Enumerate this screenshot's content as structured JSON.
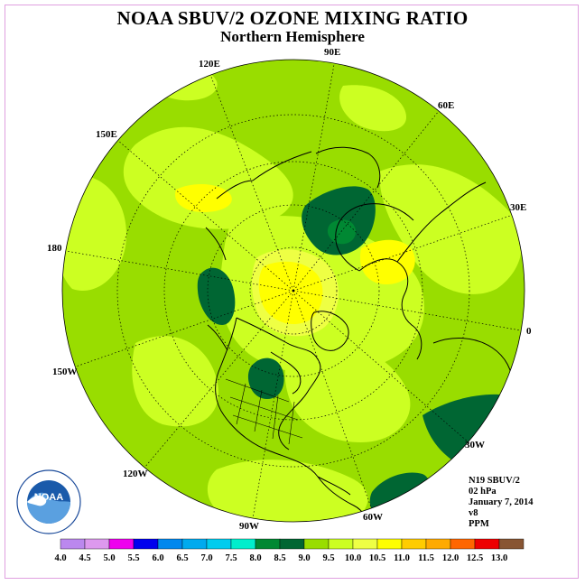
{
  "header": {
    "title": "NOAA SBUV/2 OZONE MIXING RATIO",
    "subtitle": "Northern Hemisphere"
  },
  "map": {
    "projection": "north-polar-stereographic",
    "longitude_labels": [
      "90E",
      "60E",
      "30E",
      "0",
      "30W",
      "60W",
      "90W",
      "120W",
      "150W",
      "180",
      "150E",
      "120E"
    ],
    "colors": {
      "base": "#99dd00",
      "light": "#ccff22",
      "pale": "#eeff44",
      "yellow": "#ffff00",
      "dark": "#006633",
      "mid": "#008833",
      "coast": "#000000"
    }
  },
  "info": {
    "satellite": "N19 SBUV/2",
    "level": "02 hPa",
    "date": "January 7, 2014",
    "version": "v8",
    "units": "PPM"
  },
  "logo": {
    "text": "NOAA",
    "ring_text": "NATIONAL OCEANIC AND ATMOSPHERIC ADMINISTRATION · U.S. DEPARTMENT OF COMMERCE"
  },
  "colorbar": {
    "values": [
      "4.0",
      "4.5",
      "5.0",
      "5.5",
      "6.0",
      "6.5",
      "7.0",
      "7.5",
      "8.0",
      "8.5",
      "9.0",
      "9.5",
      "10.0",
      "10.5",
      "11.0",
      "11.5",
      "12.0",
      "12.5",
      "13.0"
    ],
    "colors": [
      "#bb88ee",
      "#dd99ee",
      "#ee00ee",
      "#0000ee",
      "#0088ee",
      "#00aaee",
      "#00ccee",
      "#00eecc",
      "#008833",
      "#006633",
      "#99dd00",
      "#ccff22",
      "#eeff44",
      "#ffff00",
      "#ffcc00",
      "#ffaa00",
      "#ff6600",
      "#ee0000",
      "#885533"
    ]
  }
}
